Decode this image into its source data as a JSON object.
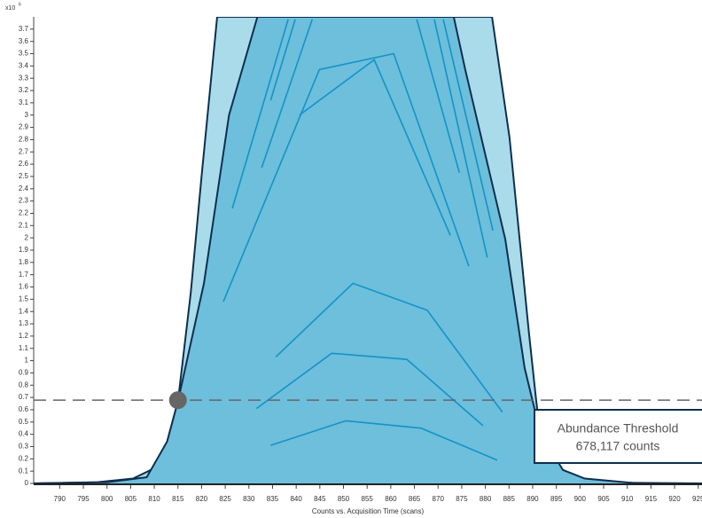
{
  "chart_data": {
    "type": "area",
    "y_label_base": "x10",
    "y_label_exp": "6",
    "x_label": "Counts vs. Acquisition Time (scans)",
    "xlim": [
      784.5,
      925.8
    ],
    "ylim": [
      0,
      3.8
    ],
    "xticks": [
      790,
      795,
      800,
      805,
      810,
      815,
      820,
      825,
      830,
      835,
      840,
      845,
      850,
      855,
      860,
      865,
      870,
      875,
      880,
      885,
      890,
      895,
      900,
      905,
      910,
      915,
      920,
      925
    ],
    "yticks": [
      0,
      0.1,
      0.2,
      0.3,
      0.4,
      0.5,
      0.6,
      0.7,
      0.8,
      0.9,
      1,
      1.1,
      1.2,
      1.3,
      1.4,
      1.5,
      1.6,
      1.7,
      1.8,
      1.9,
      2,
      2.1,
      2.2,
      2.3,
      2.4,
      2.5,
      2.6,
      2.7,
      2.8,
      2.9,
      3,
      3.1,
      3.2,
      3.3,
      3.4,
      3.5,
      3.6,
      3.7
    ],
    "series": [
      {
        "kind": "area",
        "color": "#a9dbea",
        "x": [
          784.5,
          798,
          805.5,
          809.3,
          812.1,
          815,
          817.7,
          820,
          823.3,
          881.4,
          885.1,
          889.2,
          890.7,
          892.6,
          895.4,
          901,
          908.5,
          925.8
        ],
        "values": [
          0,
          0.01,
          0.04,
          0.11,
          0.25,
          0.67,
          1.55,
          2.5,
          3.8,
          3.8,
          2.82,
          1.23,
          0.69,
          0.07,
          0.02,
          0.01,
          0.005,
          0
        ]
      },
      {
        "kind": "area",
        "color": "#6dbfdc",
        "x": [
          784.5,
          800,
          808.4,
          812.7,
          815,
          820.5,
          825.8,
          831.8,
          873.3,
          875.8,
          884.2,
          888.3,
          891.7,
          896.4,
          901,
          912.3,
          925.8
        ],
        "values": [
          0,
          0.01,
          0.05,
          0.34,
          0.67,
          1.63,
          3.0,
          3.8,
          3.8,
          3.36,
          1.99,
          0.94,
          0.4,
          0.11,
          0.04,
          0,
          0
        ]
      },
      {
        "kind": "line",
        "color": "#1493c8",
        "x": [
          826.5,
          838.3
        ],
        "values": [
          2.24,
          3.78
        ]
      },
      {
        "kind": "line",
        "color": "#1493c8",
        "x": [
          834.6,
          839.8
        ],
        "values": [
          3.12,
          3.78
        ]
      },
      {
        "kind": "line",
        "color": "#1493c8",
        "x": [
          832.7,
          843.4
        ],
        "values": [
          2.57,
          3.78
        ]
      },
      {
        "kind": "line",
        "color": "#1493c8",
        "x": [
          824.6,
          844.9,
          860.6,
          876.5
        ],
        "values": [
          1.48,
          3.37,
          3.5,
          1.77
        ]
      },
      {
        "kind": "line",
        "color": "#1493c8",
        "x": [
          840.7,
          856.5,
          872.6
        ],
        "values": [
          3.0,
          3.45,
          2.02
        ]
      },
      {
        "kind": "line",
        "color": "#1493c8",
        "x": [
          865.5,
          874.5
        ],
        "values": [
          3.78,
          2.53
        ]
      },
      {
        "kind": "line",
        "color": "#1493c8",
        "x": [
          869.2,
          880.4
        ],
        "values": [
          3.78,
          1.84
        ]
      },
      {
        "kind": "line",
        "color": "#1493c8",
        "x": [
          871.1,
          881.6
        ],
        "values": [
          3.78,
          2.06
        ]
      },
      {
        "kind": "line",
        "color": "#1493c8",
        "x": [
          835.7,
          852.0,
          867.7,
          883.6
        ],
        "values": [
          1.03,
          1.63,
          1.41,
          0.58
        ]
      },
      {
        "kind": "line",
        "color": "#1493c8",
        "x": [
          831.6,
          847.5,
          863.4,
          879.5
        ],
        "values": [
          0.61,
          1.06,
          1.01,
          0.47
        ]
      },
      {
        "kind": "line",
        "color": "#1493c8",
        "x": [
          834.6,
          850.5,
          866.4,
          882.5
        ],
        "values": [
          0.31,
          0.51,
          0.45,
          0.19
        ]
      }
    ],
    "annotation": {
      "title": "Abundance Threshold",
      "value": 0.678117,
      "label": "678,117 counts",
      "marker_x": 815
    }
  }
}
